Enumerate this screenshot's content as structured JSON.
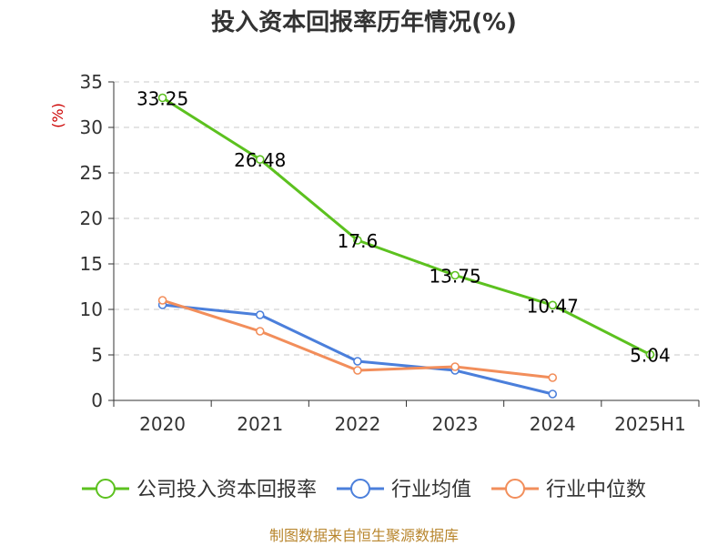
{
  "chart_data": {
    "type": "line",
    "title": "投入资本回报率历年情况(%)",
    "ylabel": "(%)",
    "xlabel": "",
    "categories": [
      "2020",
      "2021",
      "2022",
      "2023",
      "2024",
      "2025H1"
    ],
    "ylim": [
      0,
      35
    ],
    "yticks": [
      0,
      5,
      10,
      15,
      20,
      25,
      30,
      35
    ],
    "grid": true,
    "legend_position": "bottom",
    "series": [
      {
        "name": "公司投入资本回报率",
        "color": "#5cc11f",
        "values": [
          33.25,
          26.48,
          17.6,
          13.75,
          10.47,
          5.04
        ],
        "labels": [
          "33.25",
          "26.48",
          "17.6",
          "13.75",
          "10.47",
          "5.04"
        ]
      },
      {
        "name": "行业均值",
        "color": "#4b7fdb",
        "values": [
          10.5,
          9.4,
          4.3,
          3.3,
          0.7,
          null
        ]
      },
      {
        "name": "行业中位数",
        "color": "#f28e5b",
        "values": [
          11.0,
          7.6,
          3.3,
          3.7,
          2.5,
          null
        ]
      }
    ],
    "source": "制图数据来自恒生聚源数据库"
  }
}
